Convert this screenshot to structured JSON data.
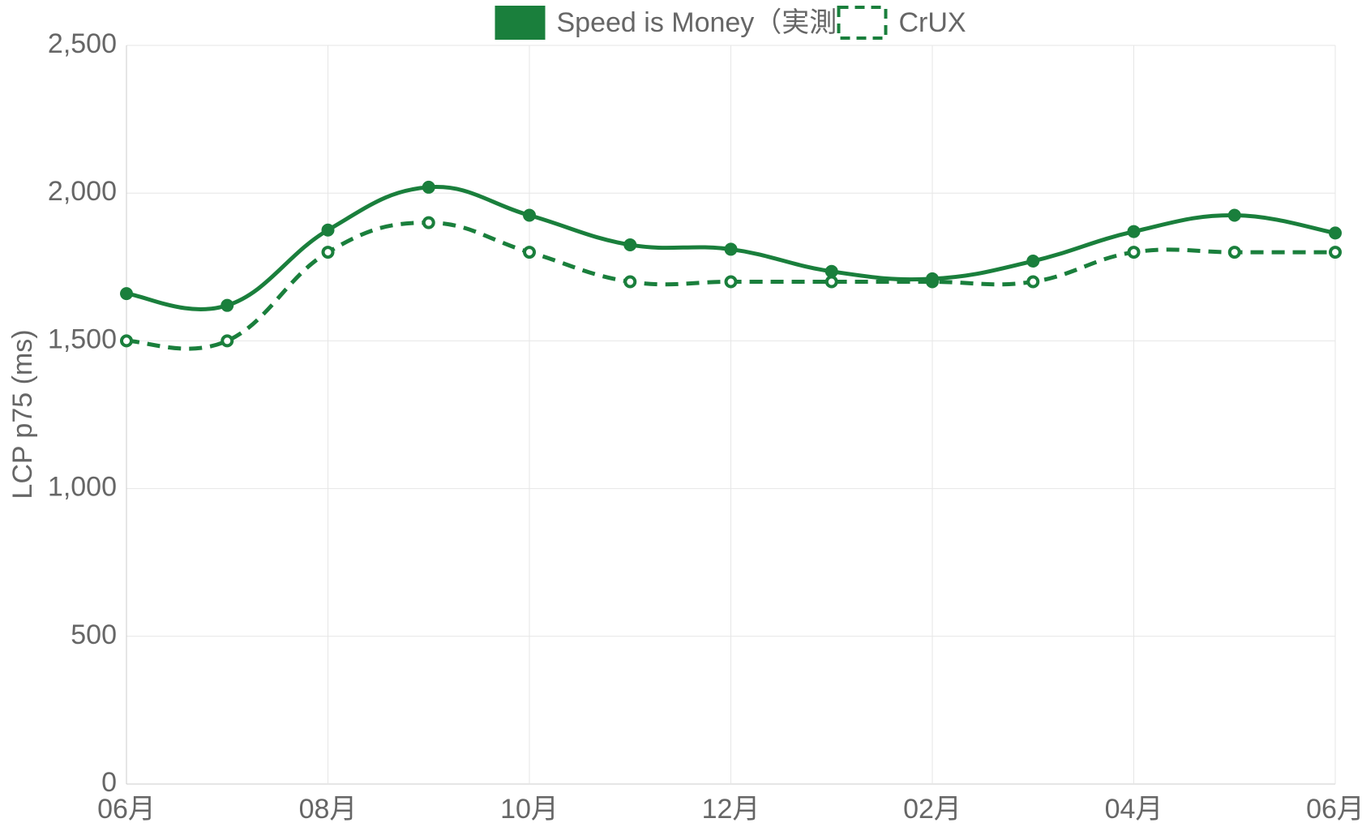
{
  "chart_data": {
    "type": "line",
    "y_label": "LCP p75 (ms)",
    "categories": [
      "06月",
      null,
      "08月",
      null,
      "10月",
      null,
      "12月",
      null,
      "02月",
      null,
      "04月",
      null,
      "06月"
    ],
    "series": [
      {
        "name": "Speed is Money（実測）",
        "color": "#1a7f3c",
        "dashed": false,
        "values": [
          1660,
          1620,
          1875,
          2020,
          1925,
          1825,
          1810,
          1735,
          1710,
          1770,
          1870,
          1925,
          1865
        ]
      },
      {
        "name": "CrUX",
        "color": "#1a7f3c",
        "dashed": true,
        "values": [
          1500,
          1500,
          1800,
          1900,
          1800,
          1700,
          1700,
          1700,
          1700,
          1700,
          1800,
          1800,
          1800
        ]
      }
    ],
    "ylim": [
      0,
      2500
    ],
    "yticks": [
      0,
      500,
      {
        "value": 1000,
        "label": "1,000"
      },
      {
        "value": 1500,
        "label": "1,500"
      },
      {
        "value": 2000,
        "label": "2,000"
      },
      {
        "value": 2500,
        "label": "2,500"
      }
    ],
    "grid": true,
    "legend": "top"
  }
}
